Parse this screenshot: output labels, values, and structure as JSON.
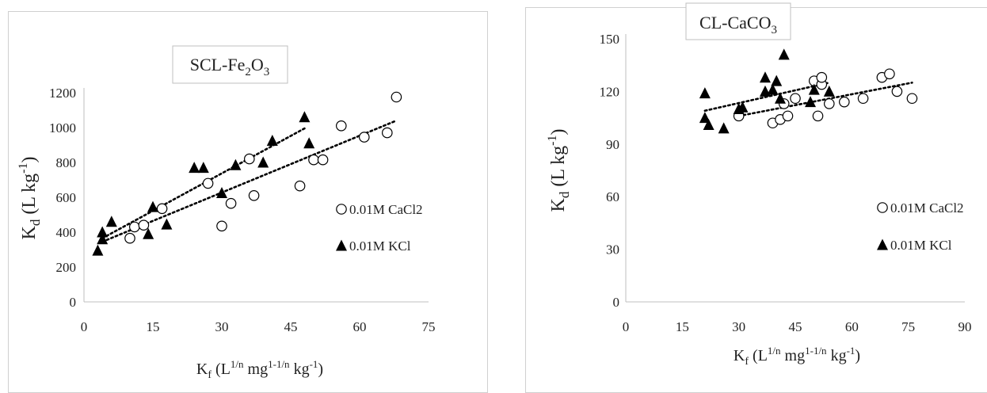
{
  "colors": {
    "axis": "#bfbfbf",
    "marker": "#000000",
    "trend": "#000000",
    "text": "#222222"
  },
  "chart_data": [
    {
      "type": "scatter",
      "title": "SCL-Fe",
      "title_sub1": "2",
      "title_mid": "O",
      "title_sub2": "3",
      "xlabel": {
        "p1": "K",
        "s1": "f",
        "p2": " (L",
        "u1": "1/n",
        "p3": " mg",
        "u2": "1-1/n",
        "p4": " kg",
        "u3": "-1",
        "p5": ")"
      },
      "ylabel": {
        "p1": "K",
        "s1": "d",
        "p2": " (L kg",
        "u1": "-1",
        "p3": ")"
      },
      "xlim": [
        0,
        75
      ],
      "ylim": [
        0,
        1200
      ],
      "xticks": [
        "0",
        "15",
        "30",
        "45",
        "60",
        "75"
      ],
      "yticks": [
        "0",
        "200",
        "400",
        "600",
        "800",
        "1000",
        "1200"
      ],
      "legend": [
        "0.01M CaCl2",
        "0.01M KCl"
      ],
      "series": [
        {
          "name": "0.01M CaCl2",
          "marker": "circle",
          "x": [
            10,
            11,
            13,
            17,
            27,
            30,
            32,
            36,
            37,
            47,
            50,
            52,
            56,
            61,
            66,
            68
          ],
          "y": [
            365,
            430,
            440,
            535,
            680,
            435,
            565,
            820,
            610,
            665,
            815,
            815,
            1010,
            945,
            970,
            1175
          ],
          "trend": [
            [
              4,
              345
            ],
            [
              68,
              1040
            ]
          ]
        },
        {
          "name": "0.01M KCl",
          "marker": "triangle",
          "x": [
            3,
            4,
            4,
            6,
            14,
            15,
            18,
            24,
            26,
            30,
            33,
            39,
            41,
            48,
            49
          ],
          "y": [
            295,
            360,
            400,
            460,
            390,
            545,
            445,
            770,
            770,
            625,
            785,
            800,
            925,
            1060,
            910
          ],
          "trend": [
            [
              4,
              365
            ],
            [
              48,
              995
            ]
          ]
        }
      ]
    },
    {
      "type": "scatter",
      "title": "CL-CaCO",
      "title_sub1": "3",
      "title_mid": "",
      "title_sub2": "",
      "xlabel": {
        "p1": "K",
        "s1": "f",
        "p2": " (L",
        "u1": "1/n",
        "p3": " mg",
        "u2": "1-1/n",
        "p4": " kg",
        "u3": "-1",
        "p5": ")"
      },
      "ylabel": {
        "p1": "K",
        "s1": "d",
        "p2": " (L kg",
        "u1": "-1",
        "p3": ")"
      },
      "xlim": [
        0,
        90
      ],
      "ylim": [
        0,
        150
      ],
      "xticks": [
        "0",
        "15",
        "30",
        "45",
        "60",
        "75",
        "90"
      ],
      "yticks": [
        "0",
        "30",
        "60",
        "90",
        "120",
        "150"
      ],
      "legend": [
        "0.01M CaCl2",
        "0.01M KCl"
      ],
      "series": [
        {
          "name": "0.01M CaCl2",
          "marker": "circle",
          "x": [
            30,
            39,
            41,
            42,
            43,
            45,
            50,
            51,
            52,
            52,
            54,
            58,
            63,
            68,
            70,
            72,
            76
          ],
          "y": [
            106,
            102,
            104,
            113,
            106,
            116,
            126,
            106,
            124,
            128,
            113,
            114,
            116,
            128,
            130,
            120,
            116
          ],
          "trend": [
            [
              30,
              106
            ],
            [
              76,
              125
            ]
          ]
        },
        {
          "name": "0.01M KCl",
          "marker": "triangle",
          "x": [
            21,
            21,
            22,
            26,
            30,
            31,
            37,
            37,
            39,
            40,
            41,
            42,
            49,
            50,
            54
          ],
          "y": [
            105,
            119,
            101,
            99,
            110,
            111,
            128,
            120,
            121,
            126,
            116,
            141,
            114,
            121,
            120
          ],
          "trend": [
            [
              21,
              109
            ],
            [
              54,
              125
            ]
          ]
        }
      ]
    }
  ]
}
